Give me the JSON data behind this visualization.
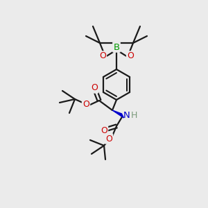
{
  "bg_color": "#ebebeb",
  "bond_color": "#1a1a1a",
  "O_color": "#cc0000",
  "N_color": "#0000cc",
  "B_color": "#009900",
  "H_color": "#7a9a7a",
  "line_width": 1.6,
  "figsize": [
    3.0,
    3.0
  ],
  "dpi": 100,
  "xlim": [
    0,
    300
  ],
  "ylim": [
    0,
    300
  ]
}
